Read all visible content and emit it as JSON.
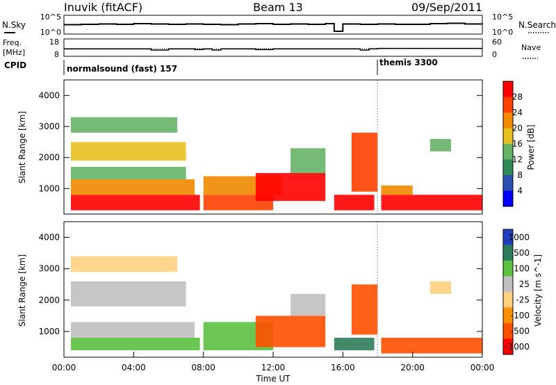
{
  "header": {
    "station": "Inuvik (fitACF)",
    "beam": "Beam 13",
    "date": "09/Sep/2011"
  },
  "chart_data": [
    {
      "type": "line",
      "panel": "noise",
      "left_label": "N.Sky",
      "right_label": "N.Search",
      "left_ticks": [
        "10^5",
        "10^0"
      ],
      "right_ticks": [
        "10^5",
        "10^0"
      ],
      "x": [
        0,
        1,
        2,
        3,
        4,
        5,
        6,
        7,
        8,
        9,
        10,
        11,
        12,
        13,
        14,
        15,
        15.5,
        16,
        17,
        18,
        19,
        20,
        21,
        22,
        23,
        24
      ],
      "series": [
        {
          "values": [
            2.5,
            2.6,
            2.7,
            2.6,
            2.8,
            2.7,
            2.6,
            2.7,
            2.6,
            2.5,
            2.7,
            2.8,
            2.6,
            2.7,
            2.6,
            2.8,
            0.6,
            2.7,
            2.6,
            2.7,
            2.6,
            2.6,
            2.8,
            2.9,
            2.7,
            2.6
          ]
        }
      ],
      "ylim": [
        0,
        5
      ],
      "log_scale": true
    },
    {
      "type": "line",
      "panel": "frequency",
      "left_label": "Freq.",
      "left_unit": "[MHz]",
      "right_label": "Nave",
      "left_ticks": [
        "18",
        "8"
      ],
      "right_ticks": [
        "60",
        "0"
      ],
      "x": [
        0,
        2,
        4,
        5,
        6,
        7,
        7.5,
        8,
        8.5,
        9,
        10,
        11,
        12,
        13,
        14,
        15,
        16,
        17,
        17.5,
        18,
        20,
        22,
        24
      ],
      "series": [
        {
          "values": [
            12.2,
            12.2,
            12.2,
            11.5,
            12.2,
            12.2,
            11.8,
            12.2,
            11.5,
            12.2,
            12.2,
            11.8,
            12.2,
            12.2,
            12.2,
            12.2,
            12.2,
            11.5,
            12.2,
            12.5,
            12.5,
            12.5,
            12.5
          ]
        }
      ],
      "ylim": [
        8,
        18
      ]
    },
    {
      "type": "table",
      "panel": "cpid",
      "label": "CPID",
      "programs": [
        {
          "name": "normalsound (fast) 157",
          "start_hour": 0,
          "end_hour": 18
        },
        {
          "name": "themis 3300",
          "start_hour": 18,
          "end_hour": 24
        }
      ]
    },
    {
      "type": "heatmap",
      "panel": "power",
      "ylabel": "Slant Range [km]",
      "y_ticks": [
        1000,
        2000,
        3000,
        4000
      ],
      "ylim": [
        180,
        4500
      ],
      "colorbar_label": "Power [dB]",
      "colorbar_ticks": [
        4,
        8,
        12,
        16,
        20,
        24,
        28
      ],
      "colors": [
        "#0000ff",
        "#2c4fb2",
        "#2e8b57",
        "#66b366",
        "#e8c020",
        "#f08a00",
        "#ff4000",
        "#ff0000"
      ],
      "regions": [
        {
          "x": [
            0.4,
            7.8
          ],
          "y": [
            300,
            800
          ],
          "value": 28
        },
        {
          "x": [
            0.4,
            7.5
          ],
          "y": [
            800,
            1300
          ],
          "value": 20
        },
        {
          "x": [
            0.4,
            7.0
          ],
          "y": [
            1300,
            1700
          ],
          "value": 12
        },
        {
          "x": [
            0.4,
            7.0
          ],
          "y": [
            1900,
            2500
          ],
          "value": 16
        },
        {
          "x": [
            0.4,
            6.5
          ],
          "y": [
            2800,
            3300
          ],
          "value": 12
        },
        {
          "x": [
            8.0,
            12.0
          ],
          "y": [
            300,
            800
          ],
          "value": 24
        },
        {
          "x": [
            8.0,
            12.5
          ],
          "y": [
            800,
            1400
          ],
          "value": 20
        },
        {
          "x": [
            11.0,
            15.0
          ],
          "y": [
            600,
            1500
          ],
          "value": 28
        },
        {
          "x": [
            13.0,
            15.0
          ],
          "y": [
            1500,
            2300
          ],
          "value": 12
        },
        {
          "x": [
            15.5,
            17.8
          ],
          "y": [
            300,
            800
          ],
          "value": 28
        },
        {
          "x": [
            16.5,
            18.0
          ],
          "y": [
            900,
            2800
          ],
          "value": 24
        },
        {
          "x": [
            18.2,
            24.0
          ],
          "y": [
            300,
            800
          ],
          "value": 28
        },
        {
          "x": [
            18.2,
            20.0
          ],
          "y": [
            800,
            1100
          ],
          "value": 20
        },
        {
          "x": [
            21.0,
            22.2
          ],
          "y": [
            2200,
            2600
          ],
          "value": 12
        }
      ]
    },
    {
      "type": "heatmap",
      "panel": "velocity",
      "xlabel": "Time UT",
      "ylabel": "Slant Range [km]",
      "x_ticks": [
        "00:00",
        "04:00",
        "08:00",
        "12:00",
        "16:00",
        "20:00",
        "00:00"
      ],
      "y_ticks": [
        1000,
        2000,
        3000,
        4000
      ],
      "ylim": [
        180,
        4500
      ],
      "colorbar_label": "Velocity [m s^-1]",
      "colorbar_ticks": [
        1000,
        500,
        100,
        25,
        -25,
        -100,
        -500,
        -1000
      ],
      "colors": [
        "#2040c0",
        "#2e7d5a",
        "#5cc040",
        "#c0c0c0",
        "#ffd080",
        "#ff9000",
        "#ff5000",
        "#ff0000"
      ],
      "regions": [
        {
          "x": [
            0.4,
            7.8
          ],
          "y": [
            400,
            800
          ],
          "value": 100
        },
        {
          "x": [
            0.4,
            7.5
          ],
          "y": [
            800,
            1300
          ],
          "value": 25
        },
        {
          "x": [
            0.4,
            7.0
          ],
          "y": [
            1800,
            2600
          ],
          "value": 25
        },
        {
          "x": [
            0.4,
            6.5
          ],
          "y": [
            2900,
            3400
          ],
          "value": 0
        },
        {
          "x": [
            8.0,
            12.0
          ],
          "y": [
            400,
            1300
          ],
          "value": 100
        },
        {
          "x": [
            11.0,
            15.0
          ],
          "y": [
            500,
            1500
          ],
          "value": -300
        },
        {
          "x": [
            13.0,
            15.0
          ],
          "y": [
            1500,
            2200
          ],
          "value": 25
        },
        {
          "x": [
            15.5,
            17.8
          ],
          "y": [
            400,
            800
          ],
          "value": 800
        },
        {
          "x": [
            16.5,
            18.0
          ],
          "y": [
            900,
            2500
          ],
          "value": -200
        },
        {
          "x": [
            18.2,
            24.0
          ],
          "y": [
            300,
            800
          ],
          "value": -300
        },
        {
          "x": [
            21.0,
            22.2
          ],
          "y": [
            2200,
            2600
          ],
          "value": 0
        }
      ]
    }
  ]
}
